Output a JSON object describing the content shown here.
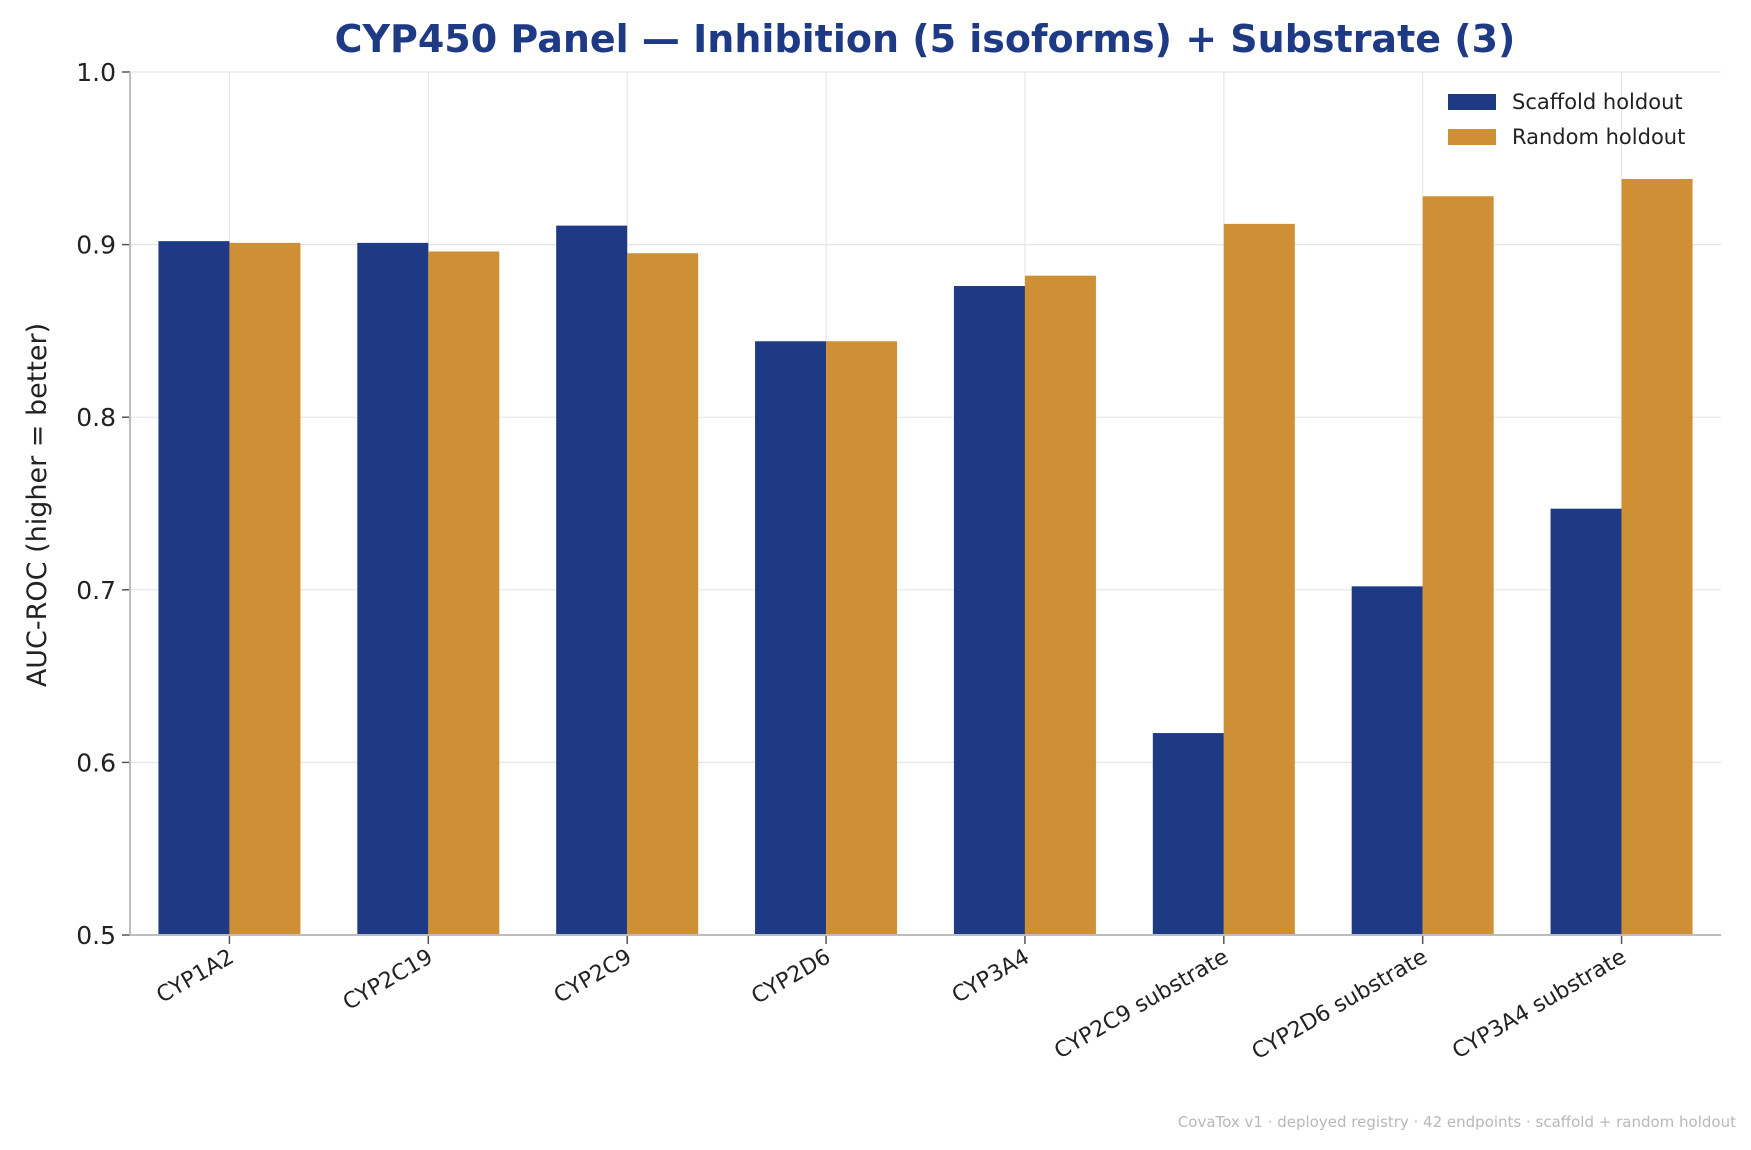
{
  "chart_data": {
    "type": "bar",
    "title": "CYP450 Panel — Inhibition (5 isoforms) + Substrate (3)",
    "xlabel": "",
    "ylabel": "AUC-ROC  (higher = better)",
    "ylim": [
      0.5,
      1.0
    ],
    "yticks": [
      "0.5",
      "0.6",
      "0.7",
      "0.8",
      "0.9",
      "1.0"
    ],
    "grid": true,
    "legend_position": "top-right",
    "categories": [
      "CYP1A2",
      "CYP2C19",
      "CYP2C9",
      "CYP2D6",
      "CYP3A4",
      "CYP2C9 substrate",
      "CYP2D6 substrate",
      "CYP3A4 substrate"
    ],
    "series": [
      {
        "name": "Scaffold holdout",
        "color": "#1f3a85",
        "values": [
          0.902,
          0.901,
          0.911,
          0.844,
          0.876,
          0.617,
          0.702,
          0.747
        ]
      },
      {
        "name": "Random holdout",
        "color": "#cf9035",
        "values": [
          0.901,
          0.896,
          0.895,
          0.844,
          0.882,
          0.912,
          0.928,
          0.938
        ]
      }
    ]
  },
  "footer": "CovaTox v1 · deployed registry · 42 endpoints · scaffold + random holdout"
}
